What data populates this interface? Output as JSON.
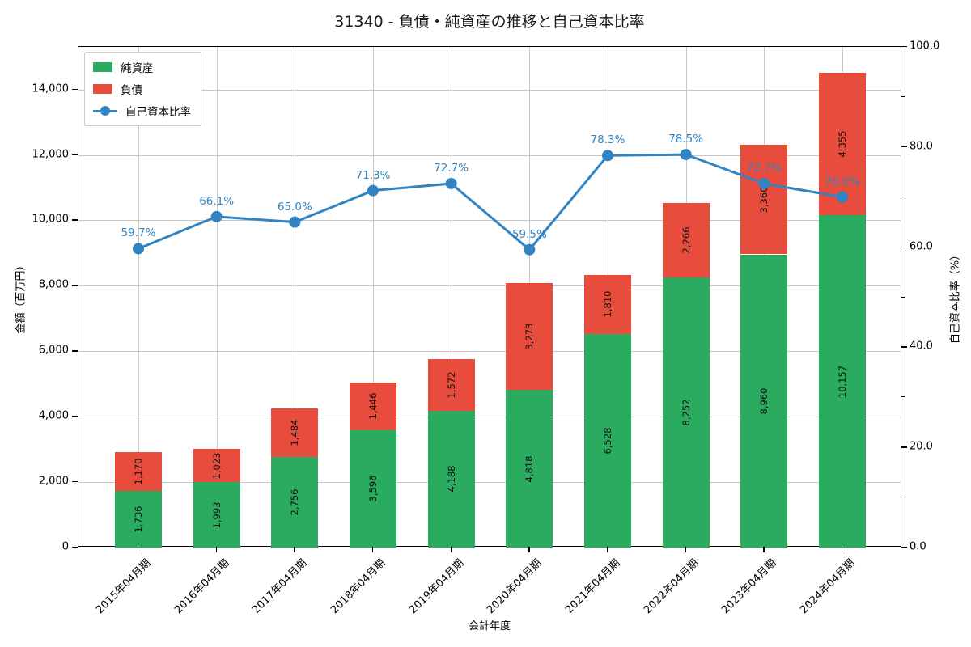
{
  "chart_data": {
    "type": "bar",
    "subtype": "stacked-bar-with-line",
    "title": "31340 - 負債・純資産の推移と自己資本比率",
    "xlabel": "会計年度",
    "ylabel_left": "金額（百万円）",
    "ylabel_right": "自己資本比率（%）",
    "categories": [
      "2015年04月期",
      "2016年04月期",
      "2017年04月期",
      "2018年04月期",
      "2019年04月期",
      "2020年04月期",
      "2021年04月期",
      "2022年04月期",
      "2023年04月期",
      "2024年04月期"
    ],
    "series": [
      {
        "name": "純資産",
        "type": "bar",
        "axis": "left",
        "color": "#2aab60",
        "values": [
          1736,
          1993,
          2756,
          3596,
          4188,
          4818,
          6528,
          8252,
          8960,
          10157
        ],
        "labels": [
          "1,736",
          "1,993",
          "2,756",
          "3,596",
          "4,188",
          "4,818",
          "6,528",
          "8,252",
          "8,960",
          "10,157"
        ]
      },
      {
        "name": "負債",
        "type": "bar",
        "axis": "left",
        "color": "#e74c3c",
        "values": [
          1170,
          1023,
          1484,
          1446,
          1572,
          3273,
          1810,
          2266,
          3360,
          4355
        ],
        "labels": [
          "1,170",
          "1,023",
          "1,484",
          "1,446",
          "1,572",
          "3,273",
          "1,810",
          "2,266",
          "3,360",
          "4,355"
        ]
      },
      {
        "name": "自己資本比率",
        "type": "line",
        "axis": "right",
        "color": "#3183c1",
        "values": [
          59.7,
          66.1,
          65.0,
          71.3,
          72.7,
          59.5,
          78.3,
          78.5,
          72.7,
          70.0
        ],
        "labels": [
          "59.7%",
          "66.1%",
          "65.0%",
          "71.3%",
          "72.7%",
          "59.5%",
          "78.3%",
          "78.5%",
          "72.7%",
          "70.0%"
        ]
      }
    ],
    "left_axis": {
      "max": 15300,
      "ticks": [
        {
          "value": 0,
          "label": "0"
        },
        {
          "value": 2000,
          "label": "2,000"
        },
        {
          "value": 4000,
          "label": "4,000"
        },
        {
          "value": 6000,
          "label": "6,000"
        },
        {
          "value": 8000,
          "label": "8,000"
        },
        {
          "value": 10000,
          "label": "10,000"
        },
        {
          "value": 12000,
          "label": "12,000"
        },
        {
          "value": 14000,
          "label": "14,000"
        }
      ]
    },
    "right_axis": {
      "max": 100,
      "ticks": [
        {
          "value": 0,
          "label": "0.0"
        },
        {
          "value": 20,
          "label": "20.0"
        },
        {
          "value": 40,
          "label": "40.0"
        },
        {
          "value": 60,
          "label": "60.0"
        },
        {
          "value": 80,
          "label": "80.0"
        },
        {
          "value": 100,
          "label": "100.0"
        }
      ],
      "minor_ticks": [
        10,
        30,
        50,
        70,
        90
      ]
    },
    "legend_position": "upper-left",
    "grid": true,
    "colors": {
      "grid": "#c6c6c6",
      "spine": "#000000",
      "background": "#ffffff",
      "bar_label_text": "#111111"
    }
  }
}
